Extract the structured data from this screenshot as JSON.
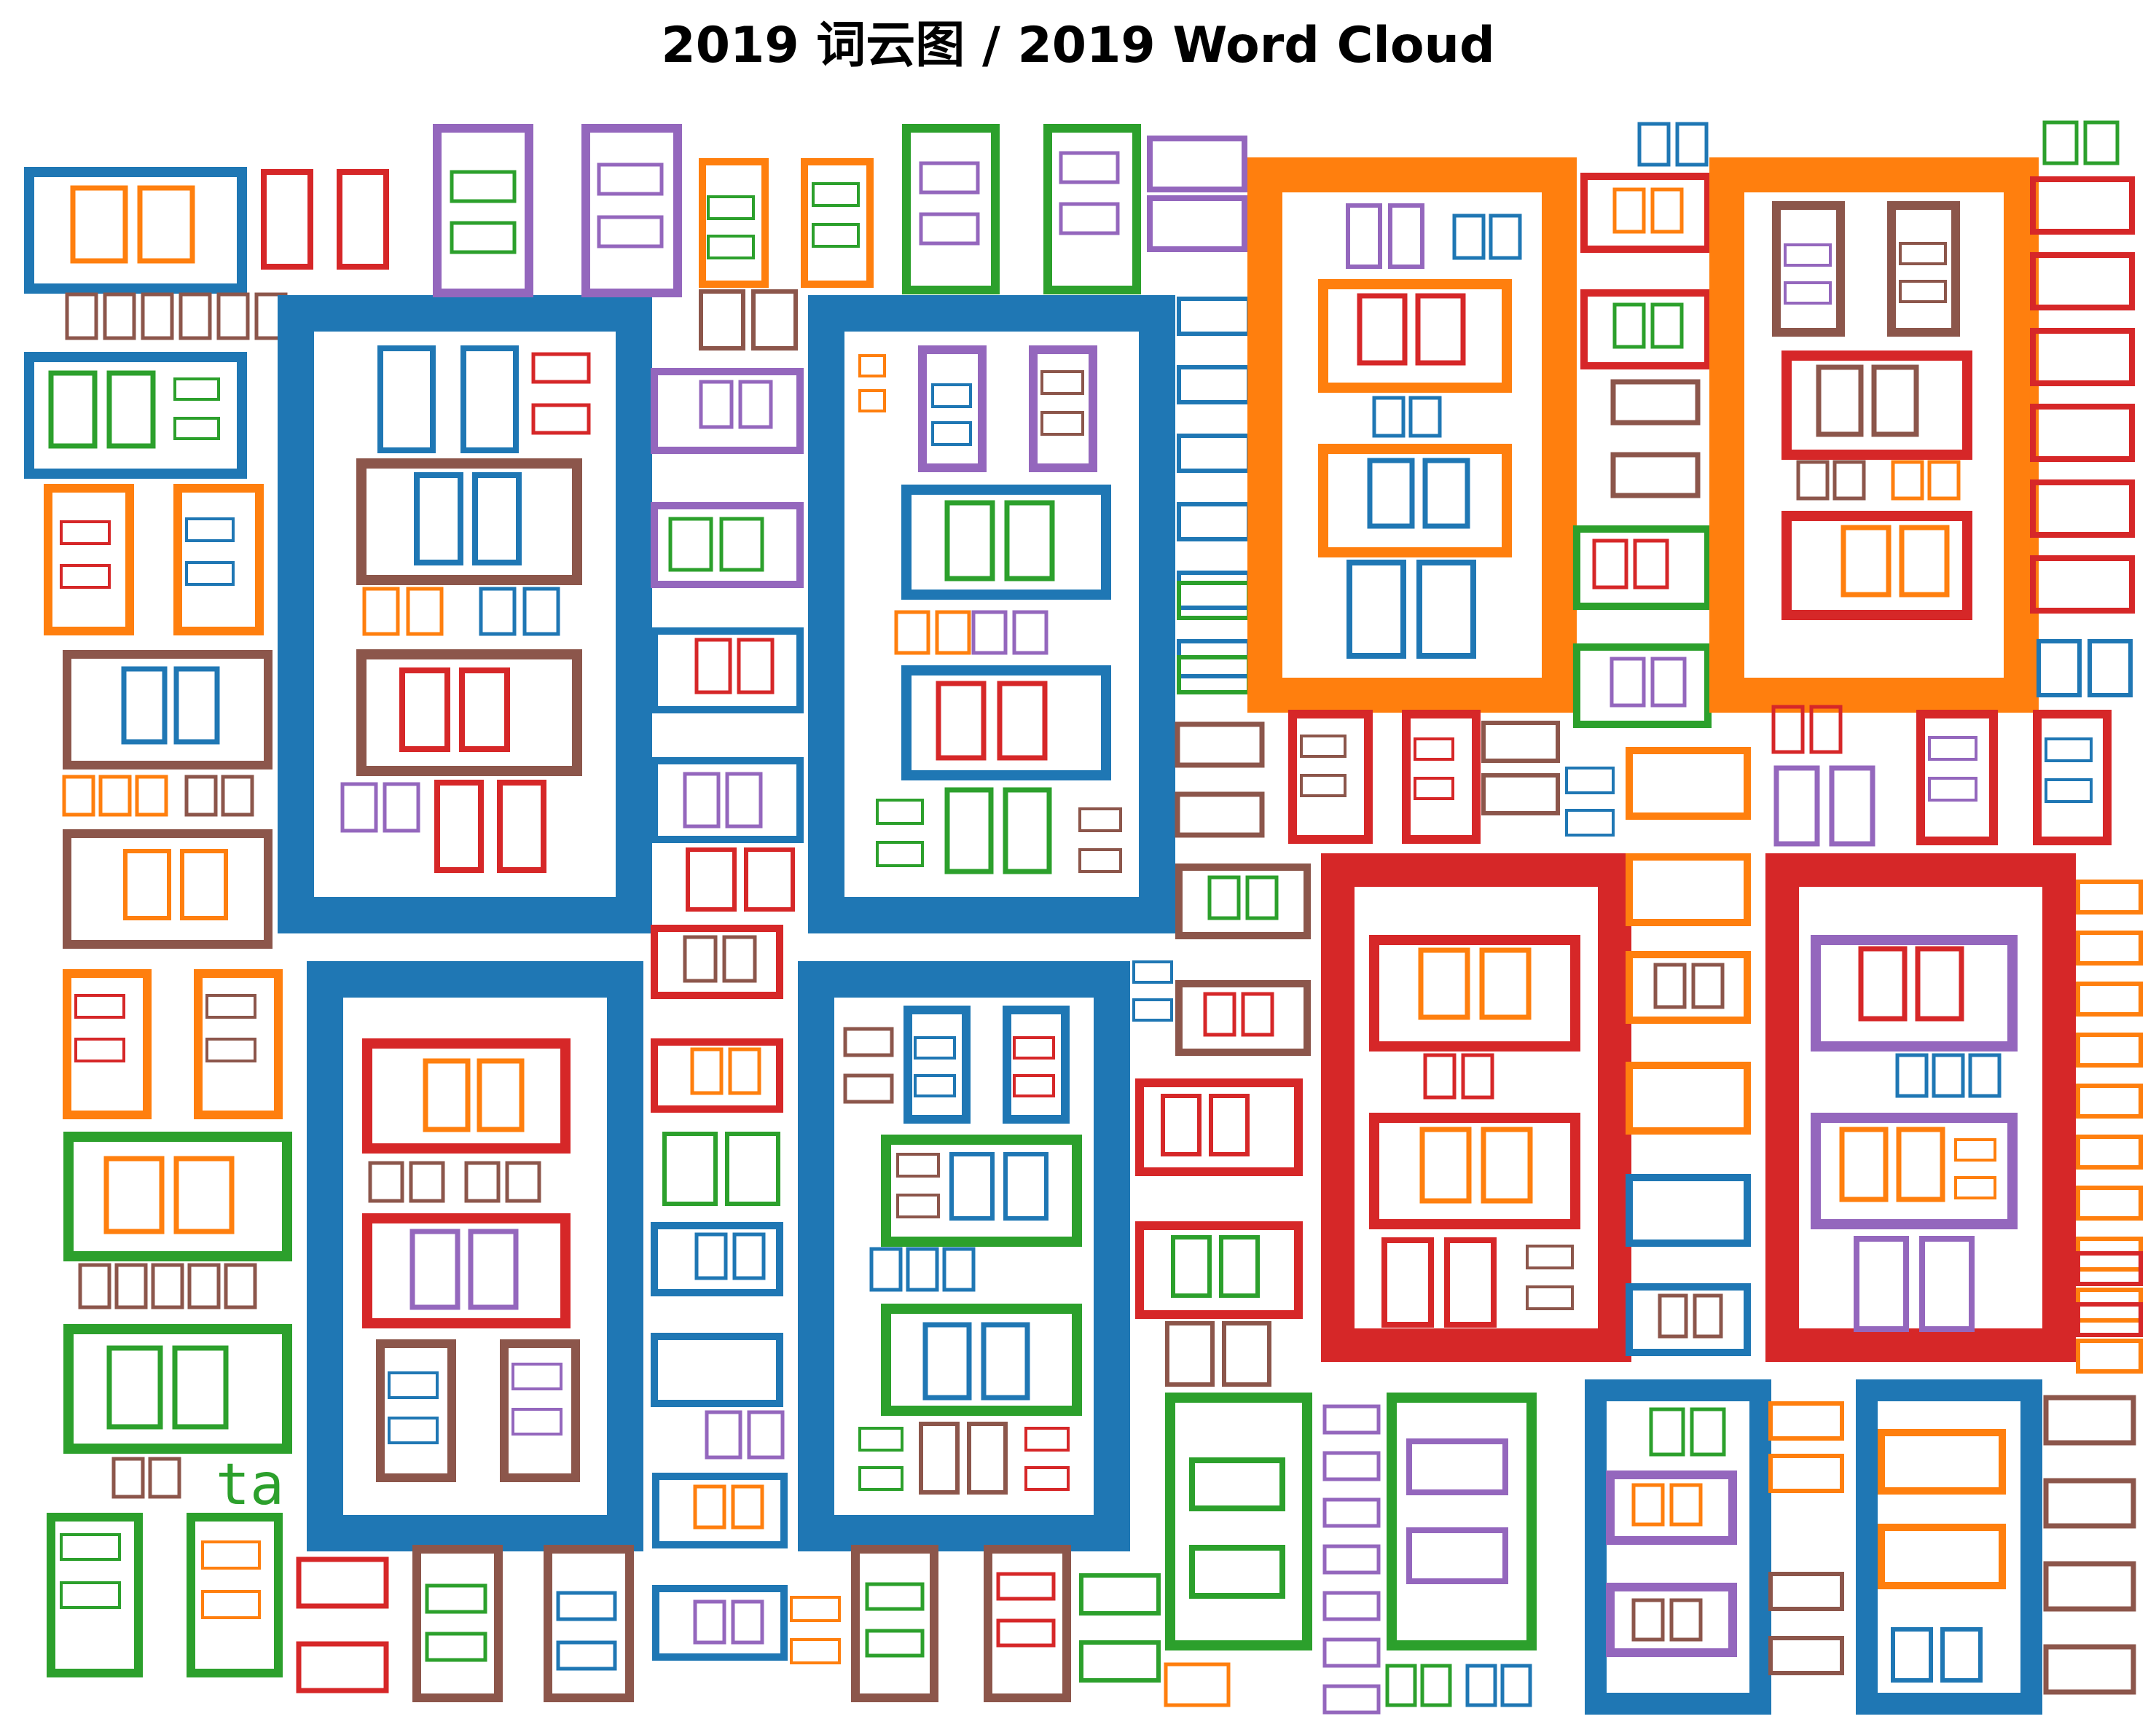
{
  "title": "2019 词云图 / 2019 Word Cloud",
  "colors": {
    "blue": "#1f77b4",
    "orange": "#ff7f0e",
    "green": "#2ca02c",
    "red": "#d62728",
    "purple": "#9467bd",
    "brown": "#8c564b"
  },
  "visible_words": [
    "ta"
  ]
}
